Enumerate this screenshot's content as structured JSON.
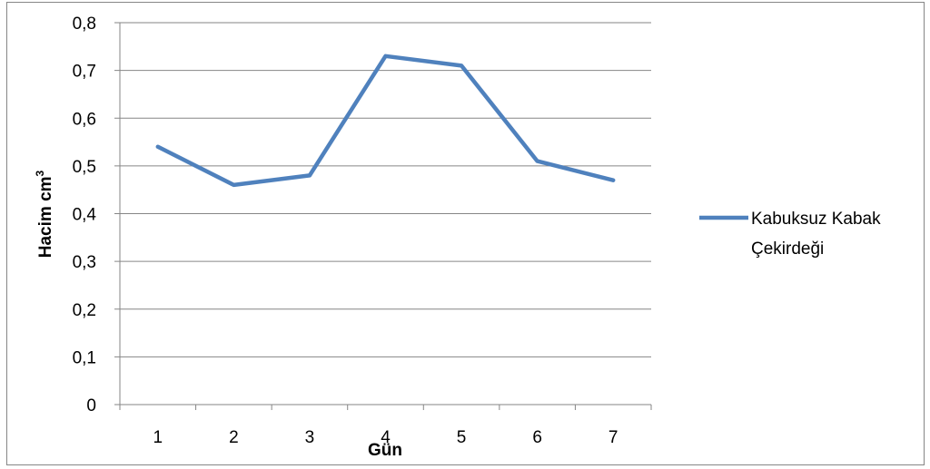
{
  "chart_data": {
    "type": "line",
    "categories": [
      "1",
      "2",
      "3",
      "4",
      "5",
      "6",
      "7"
    ],
    "series": [
      {
        "name": "Kabuksuz Kabak Çekirdeği",
        "values": [
          0.54,
          0.46,
          0.48,
          0.73,
          0.71,
          0.51,
          0.47
        ],
        "color": "#4F81BD"
      }
    ],
    "y_ticks": [
      "0",
      "0,1",
      "0,2",
      "0,3",
      "0,4",
      "0,5",
      "0,6",
      "0,7",
      "0,8"
    ],
    "ylim": [
      0,
      0.8
    ],
    "xlabel": "Gün",
    "ylabel_text": "Hacim cm",
    "ylabel_superscript": "3",
    "grid": true,
    "legend": {
      "placement": "right",
      "lines": [
        "Kabuksuz Kabak",
        "Çekirdeği"
      ]
    }
  }
}
